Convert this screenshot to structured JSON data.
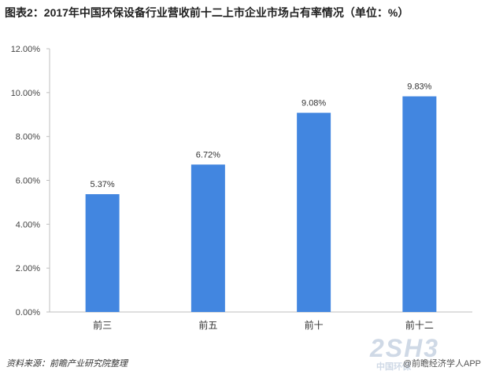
{
  "title": "图表2：2017年中国环保设备行业营收前十二上市企业市场占有率情况（单位：%）",
  "source": "资料来源：前瞻产业研究院整理",
  "credit": "@前瞻经济学人APP",
  "watermark": "2SH3",
  "watermark_sub": "中国环保",
  "colors": {
    "bar": "#4286e0",
    "axis": "#bfbfbf"
  },
  "chart_data": {
    "type": "bar",
    "categories": [
      "前三",
      "前五",
      "前十",
      "前十二"
    ],
    "values": [
      5.37,
      6.72,
      9.08,
      9.83
    ],
    "value_labels": [
      "5.37%",
      "6.72%",
      "9.08%",
      "9.83%"
    ],
    "ylim": [
      0,
      12
    ],
    "yticks": [
      "0.00%",
      "2.00%",
      "4.00%",
      "6.00%",
      "8.00%",
      "10.00%",
      "12.00%"
    ],
    "grid": false
  }
}
